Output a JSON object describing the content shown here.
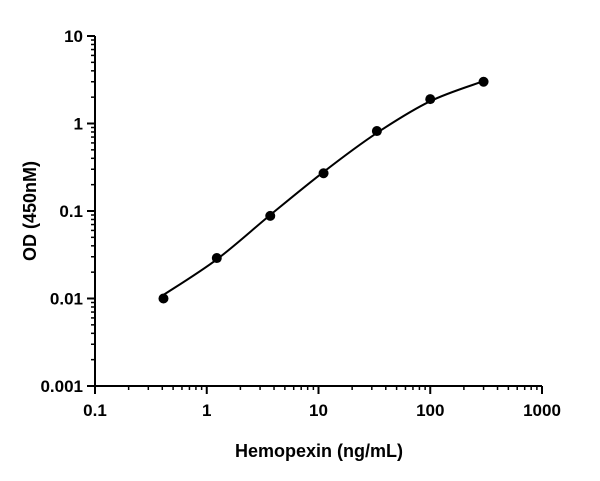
{
  "chart_data": {
    "type": "scatter",
    "title": "",
    "xlabel": "Hemopexin (ng/mL)",
    "ylabel": "OD (450nM)",
    "x_scale": "log",
    "y_scale": "log",
    "xlim": [
      0.1,
      1000
    ],
    "ylim": [
      0.001,
      10
    ],
    "x_ticks": [
      {
        "value": 0.1,
        "label": "0.1"
      },
      {
        "value": 1,
        "label": "1"
      },
      {
        "value": 10,
        "label": "10"
      },
      {
        "value": 100,
        "label": "100"
      },
      {
        "value": 1000,
        "label": "1000"
      }
    ],
    "y_ticks": [
      {
        "value": 0.001,
        "label": "0.001"
      },
      {
        "value": 0.01,
        "label": "0.01"
      },
      {
        "value": 0.1,
        "label": "0.1"
      },
      {
        "value": 1,
        "label": "1"
      },
      {
        "value": 10,
        "label": "10"
      }
    ],
    "grid": false,
    "series": [
      {
        "type": "scatter",
        "x": [
          0.41,
          1.23,
          3.7,
          11.1,
          33.3,
          100,
          300
        ],
        "y": [
          0.01,
          0.029,
          0.088,
          0.27,
          0.82,
          1.9,
          3.0
        ]
      },
      {
        "type": "line",
        "x": [
          0.41,
          1.23,
          3.7,
          11.1,
          33.3,
          100,
          300
        ],
        "y": [
          0.011,
          0.028,
          0.09,
          0.28,
          0.78,
          1.8,
          3.05
        ]
      }
    ],
    "colors": {
      "axis": "#000000",
      "marker": "#000000",
      "curve": "#000000"
    }
  }
}
